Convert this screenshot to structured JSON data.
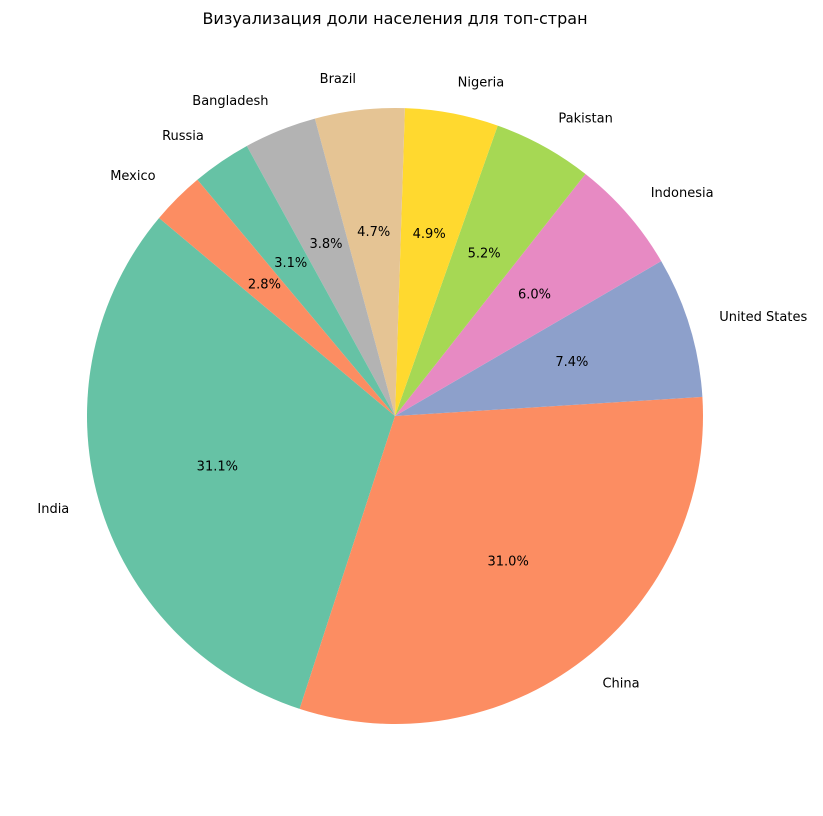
{
  "chart_data": {
    "type": "pie",
    "title": "Визуализация доли населения для топ-стран",
    "start_angle_deg": 140,
    "direction": "counterclockwise",
    "slices": [
      {
        "label": "India",
        "value": 31.1,
        "pct": "31.1%",
        "color": "#66c2a5"
      },
      {
        "label": "China",
        "value": 31.0,
        "pct": "31.0%",
        "color": "#fc8d62"
      },
      {
        "label": "United States",
        "value": 7.4,
        "pct": "7.4%",
        "color": "#8da0cb"
      },
      {
        "label": "Indonesia",
        "value": 6.0,
        "pct": "6.0%",
        "color": "#e78ac3"
      },
      {
        "label": "Pakistan",
        "value": 5.2,
        "pct": "5.2%",
        "color": "#a6d854"
      },
      {
        "label": "Nigeria",
        "value": 4.9,
        "pct": "4.9%",
        "color": "#ffd92f"
      },
      {
        "label": "Brazil",
        "value": 4.7,
        "pct": "4.7%",
        "color": "#e5c494"
      },
      {
        "label": "Bangladesh",
        "value": 3.8,
        "pct": "3.8%",
        "color": "#b3b3b3"
      },
      {
        "label": "Russia",
        "value": 3.1,
        "pct": "3.1%",
        "color": "#66c2a5"
      },
      {
        "label": "Mexico",
        "value": 2.8,
        "pct": "2.8%",
        "color": "#fc8d62"
      }
    ]
  }
}
